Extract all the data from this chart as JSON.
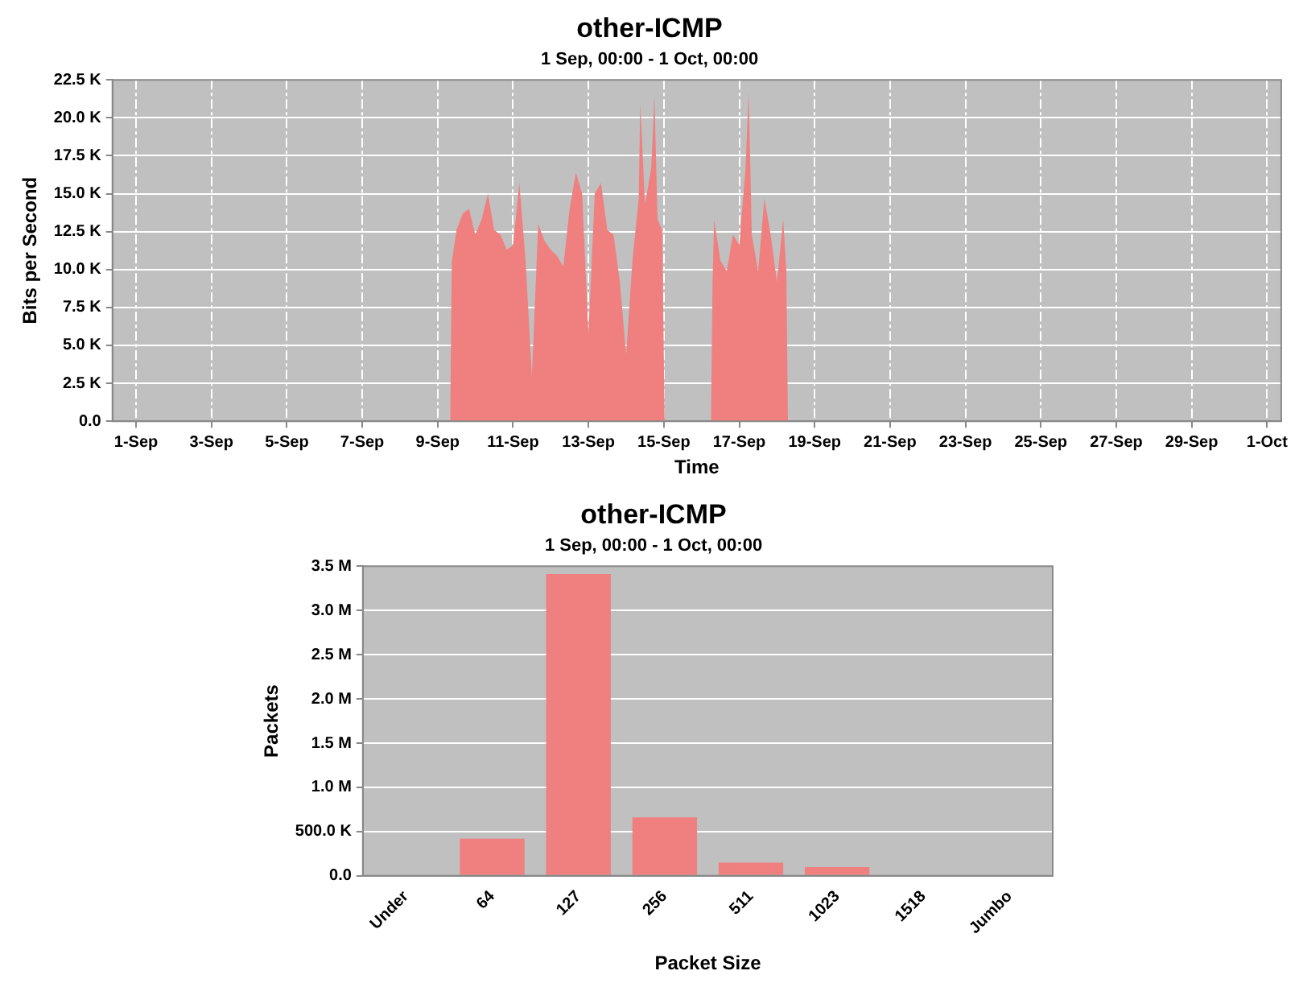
{
  "chart_data": [
    {
      "type": "area",
      "title": "other-ICMP",
      "subtitle": "1 Sep, 00:00 - 1 Oct, 00:00",
      "xlabel": "Time",
      "ylabel": "Bits per Second",
      "color": "#f08080",
      "grid": true,
      "x": [
        "--09-01T00:00",
        "--09-09T08:00",
        "--09-09T09:00",
        "--09-09T12:00",
        "--09-09T16:00",
        "--09-09T20:00",
        "--09-10T00:00",
        "--09-10T04:00",
        "--09-10T08:00",
        "--09-10T12:00",
        "--09-10T16:00",
        "--09-10T20:00",
        "--09-11T00:00",
        "--09-11T04:00",
        "--09-11T08:00",
        "--09-11T12:00",
        "--09-11T16:00",
        "--09-11T20:00",
        "--09-12T00:00",
        "--09-12T04:00",
        "--09-12T08:00",
        "--09-12T12:00",
        "--09-12T16:00",
        "--09-12T20:00",
        "--09-13T00:00",
        "--09-13T04:00",
        "--09-13T08:00",
        "--09-13T12:00",
        "--09-13T16:00",
        "--09-13T20:00",
        "--09-14T00:00",
        "--09-14T04:00",
        "--09-14T08:00",
        "--09-14T09:00",
        "--09-14T12:00",
        "--09-14T16:00",
        "--09-14T18:00",
        "--09-14T20:00",
        "--09-14T23:00",
        "--09-15T00:30",
        "--09-16T06:00",
        "--09-16T07:00",
        "--09-16T08:00",
        "--09-16T12:00",
        "--09-16T16:00",
        "--09-16T20:00",
        "--09-17T00:00",
        "--09-17T04:00",
        "--09-17T06:00",
        "--09-17T08:00",
        "--09-17T12:00",
        "--09-17T16:00",
        "--09-17T20:00",
        "--09-18T00:00",
        "--09-18T04:00",
        "--09-18T06:00",
        "--09-18T07:00",
        "--10-01T00:00"
      ],
      "values": [
        0,
        0,
        10500,
        12600,
        13700,
        14000,
        12300,
        13300,
        15000,
        12600,
        12300,
        11300,
        11600,
        15700,
        10600,
        3000,
        13000,
        11900,
        11300,
        10900,
        10200,
        14000,
        16400,
        15000,
        5800,
        15000,
        15700,
        12600,
        12300,
        9200,
        4400,
        10600,
        14700,
        21000,
        14300,
        16700,
        21500,
        13300,
        12600,
        0,
        0,
        9200,
        13300,
        10600,
        9900,
        12300,
        11600,
        16700,
        21700,
        12300,
        9900,
        14700,
        12300,
        9200,
        13300,
        9900,
        0,
        0
      ],
      "xlim": [
        "--08-31T09:00",
        "--10-01T09:00"
      ],
      "xticks": [
        {
          "value": "--09-01",
          "label": "1-Sep"
        },
        {
          "value": "--09-03",
          "label": "3-Sep"
        },
        {
          "value": "--09-05",
          "label": "5-Sep"
        },
        {
          "value": "--09-07",
          "label": "7-Sep"
        },
        {
          "value": "--09-09",
          "label": "9-Sep"
        },
        {
          "value": "--09-11",
          "label": "11-Sep"
        },
        {
          "value": "--09-13",
          "label": "13-Sep"
        },
        {
          "value": "--09-15",
          "label": "15-Sep"
        },
        {
          "value": "--09-17",
          "label": "17-Sep"
        },
        {
          "value": "--09-19",
          "label": "19-Sep"
        },
        {
          "value": "--09-21",
          "label": "21-Sep"
        },
        {
          "value": "--09-23",
          "label": "23-Sep"
        },
        {
          "value": "--09-25",
          "label": "25-Sep"
        },
        {
          "value": "--09-27",
          "label": "27-Sep"
        },
        {
          "value": "--09-29",
          "label": "29-Sep"
        },
        {
          "value": "--10-01",
          "label": "1-Oct"
        }
      ],
      "ylim": [
        0,
        22500
      ],
      "yticks": [
        {
          "value": 0,
          "label": "0.0"
        },
        {
          "value": 2500,
          "label": "2.5 K"
        },
        {
          "value": 5000,
          "label": "5.0 K"
        },
        {
          "value": 7500,
          "label": "7.5 K"
        },
        {
          "value": 10000,
          "label": "10.0 K"
        },
        {
          "value": 12500,
          "label": "12.5 K"
        },
        {
          "value": 15000,
          "label": "15.0 K"
        },
        {
          "value": 17500,
          "label": "17.5 K"
        },
        {
          "value": 20000,
          "label": "20.0 K"
        },
        {
          "value": 22500,
          "label": "22.5 K"
        }
      ]
    },
    {
      "type": "bar",
      "title": "other-ICMP",
      "subtitle": "1 Sep, 00:00 - 1 Oct, 00:00",
      "xlabel": "Packet Size",
      "ylabel": "Packets",
      "color": "#f08080",
      "grid": "y",
      "categories": [
        "Under",
        "64",
        "127",
        "256",
        "511",
        "1023",
        "1518",
        "Jumbo"
      ],
      "values": [
        0,
        420000,
        3410000,
        660000,
        150000,
        100000,
        0,
        0
      ],
      "ylim": [
        0,
        3500000
      ],
      "yticks": [
        {
          "value": 0,
          "label": "0.0"
        },
        {
          "value": 500000,
          "label": "500.0 K"
        },
        {
          "value": 1000000,
          "label": "1.0 M"
        },
        {
          "value": 1500000,
          "label": "1.5 M"
        },
        {
          "value": 2000000,
          "label": "2.0 M"
        },
        {
          "value": 2500000,
          "label": "2.5 M"
        },
        {
          "value": 3000000,
          "label": "3.0 M"
        },
        {
          "value": 3500000,
          "label": "3.5 M"
        }
      ]
    }
  ]
}
